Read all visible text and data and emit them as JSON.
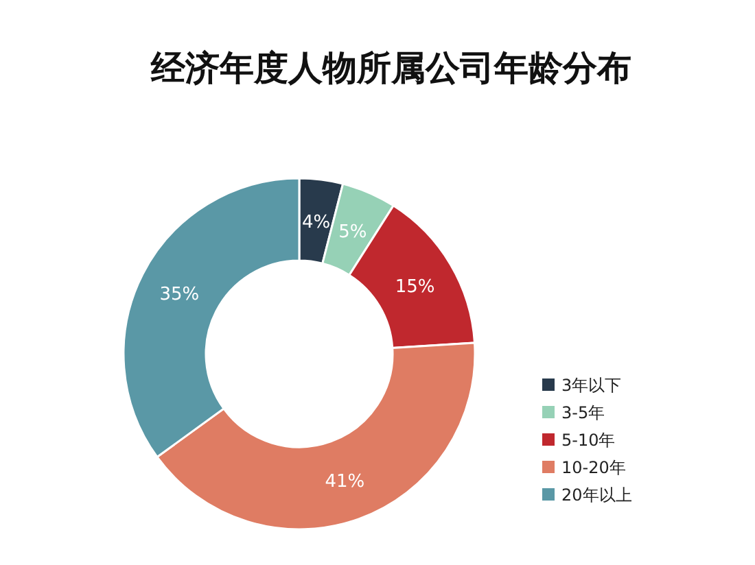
{
  "chart_data": {
    "type": "donut",
    "title": "经济年度人物所属公司年龄分布",
    "categories": [
      "3年以下",
      "3-5年",
      "5-10年",
      "10-20年",
      "20年以上"
    ],
    "values": [
      4,
      5,
      15,
      41,
      35
    ],
    "value_labels": [
      "4%",
      "5%",
      "15%",
      "41%",
      "35%"
    ],
    "colors": [
      "#283a4c",
      "#96d1b6",
      "#c0282e",
      "#df7c63",
      "#5a98a6"
    ],
    "legend": "bottom right"
  }
}
